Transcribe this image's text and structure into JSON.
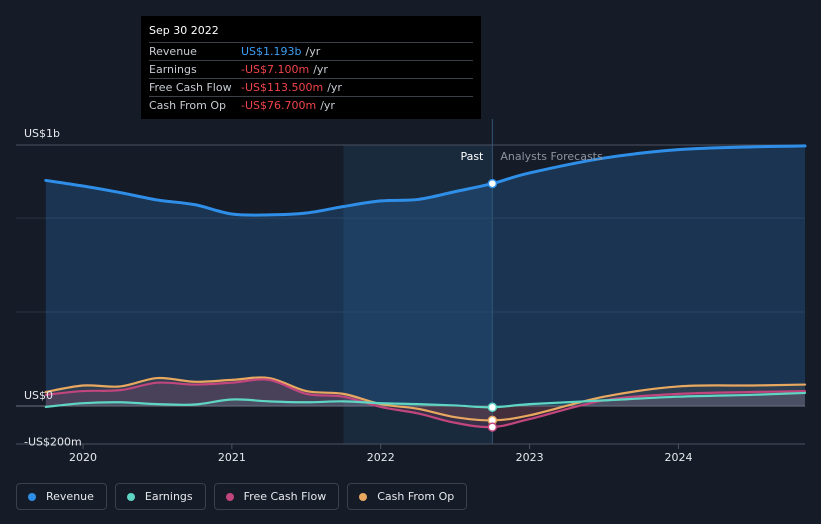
{
  "tooltip": {
    "date": "Sep 30 2022",
    "rows": [
      {
        "label": "Revenue",
        "value": "US$1.193b",
        "unit": "/yr",
        "color": "#3b9ff5"
      },
      {
        "label": "Earnings",
        "value": "-US$7.100m",
        "unit": "/yr",
        "color": "#f0444a"
      },
      {
        "label": "Free Cash Flow",
        "value": "-US$113.500m",
        "unit": "/yr",
        "color": "#f0444a"
      },
      {
        "label": "Cash From Op",
        "value": "-US$76.700m",
        "unit": "/yr",
        "color": "#f0444a"
      }
    ]
  },
  "labels": {
    "past": "Past",
    "forecast": "Analysts Forecasts"
  },
  "legend": [
    {
      "name": "Revenue",
      "color": "#2f8fe8"
    },
    {
      "name": "Earnings",
      "color": "#5fd6c3"
    },
    {
      "name": "Free Cash Flow",
      "color": "#c0467d"
    },
    {
      "name": "Cash From Op",
      "color": "#e9a860"
    }
  ],
  "chart_data": {
    "type": "line",
    "y_tick_labels": [
      "US$1b",
      "US$0",
      "-US$200m"
    ],
    "y_ticks": [
      1400,
      0,
      -200
    ],
    "x_tick_labels": [
      "2020",
      "2021",
      "2022",
      "2023",
      "2024"
    ],
    "x_ticks": [
      2020,
      2021,
      2022,
      2023,
      2024
    ],
    "xlim": [
      2019.55,
      2024.85
    ],
    "ylim": [
      -210,
      1400
    ],
    "grid": true,
    "past_end": 2022.75,
    "highlight_start": 2021.75,
    "series": [
      {
        "name": "Revenue",
        "color": "#2f8fe8",
        "x": [
          2019.75,
          2020.0,
          2020.25,
          2020.5,
          2020.75,
          2021.0,
          2021.25,
          2021.5,
          2021.75,
          2022.0,
          2022.25,
          2022.5,
          2022.75,
          2023.0,
          2023.5,
          2024.0,
          2024.5,
          2024.85
        ],
        "y": [
          1210,
          1180,
          1145,
          1105,
          1080,
          1030,
          1025,
          1035,
          1070,
          1100,
          1108,
          1150,
          1193,
          1250,
          1330,
          1375,
          1390,
          1395
        ]
      },
      {
        "name": "Earnings",
        "color": "#5fd6c3",
        "x": [
          2019.75,
          2020.0,
          2020.25,
          2020.5,
          2020.75,
          2021.0,
          2021.25,
          2021.5,
          2021.75,
          2022.0,
          2022.25,
          2022.5,
          2022.75,
          2023.0,
          2023.5,
          2024.0,
          2024.5,
          2024.85
        ],
        "y": [
          -5,
          15,
          20,
          10,
          8,
          35,
          25,
          20,
          25,
          15,
          10,
          3,
          -7,
          10,
          30,
          50,
          60,
          70
        ]
      },
      {
        "name": "Free Cash Flow",
        "color": "#c0467d",
        "x": [
          2019.75,
          2020.0,
          2020.25,
          2020.5,
          2020.75,
          2021.0,
          2021.25,
          2021.5,
          2021.75,
          2022.0,
          2022.25,
          2022.5,
          2022.75,
          2023.0,
          2023.5,
          2024.0,
          2024.5,
          2024.85
        ],
        "y": [
          60,
          80,
          85,
          125,
          115,
          125,
          140,
          65,
          50,
          -5,
          -40,
          -90,
          -113,
          -70,
          30,
          65,
          75,
          80
        ]
      },
      {
        "name": "Cash From Op",
        "color": "#e9a860",
        "x": [
          2019.75,
          2020.0,
          2020.25,
          2020.5,
          2020.75,
          2021.0,
          2021.25,
          2021.5,
          2021.75,
          2022.0,
          2022.25,
          2022.5,
          2022.75,
          2023.0,
          2023.5,
          2024.0,
          2024.5,
          2024.85
        ],
        "y": [
          75,
          110,
          105,
          150,
          130,
          140,
          150,
          80,
          65,
          10,
          -15,
          -60,
          -77,
          -50,
          50,
          105,
          110,
          115
        ]
      }
    ]
  }
}
